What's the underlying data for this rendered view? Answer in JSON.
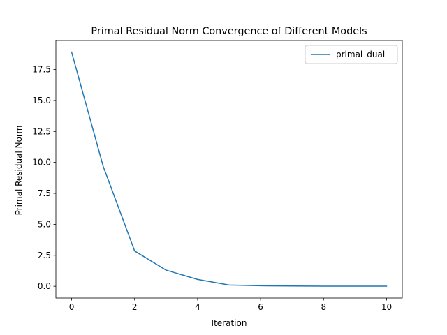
{
  "chart_data": {
    "type": "line",
    "title": "Primal Residual Norm Convergence of Different Models",
    "xlabel": "Iteration",
    "ylabel": "Primal Residual Norm",
    "xlim": [
      -0.5,
      10.5
    ],
    "ylim": [
      -0.95,
      19.84
    ],
    "xticks": [
      0,
      2,
      4,
      6,
      8,
      10
    ],
    "xtick_labels": [
      "0",
      "2",
      "4",
      "6",
      "8",
      "10"
    ],
    "yticks": [
      0,
      2.5,
      5,
      7.5,
      10,
      12.5,
      15,
      17.5
    ],
    "ytick_labels": [
      "0.0",
      "2.5",
      "5.0",
      "7.5",
      "10.0",
      "12.5",
      "15.0",
      "17.5"
    ],
    "grid": false,
    "legend_position": "upper right",
    "series": [
      {
        "name": "primal_dual",
        "color": "#1f77b4",
        "x": [
          0,
          1,
          2,
          3,
          4,
          5,
          6,
          7,
          8,
          9,
          10
        ],
        "y": [
          18.9,
          9.7,
          2.85,
          1.3,
          0.55,
          0.1,
          0.04,
          0.02,
          0.01,
          0.01,
          0.01
        ]
      }
    ]
  }
}
